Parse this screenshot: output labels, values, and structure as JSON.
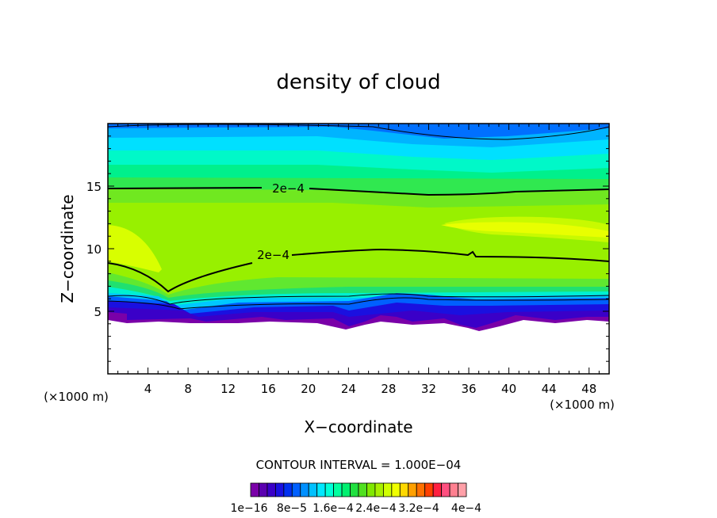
{
  "chart_data": {
    "type": "heatmap",
    "title": "density of cloud",
    "xlabel": "X−coordinate",
    "ylabel": "Z−coordinate",
    "x_unit_left": "(×1000 m)",
    "x_unit_right": "(×1000 m)",
    "xlim": [
      0,
      50
    ],
    "ylim": [
      0,
      20
    ],
    "xticks": [
      4,
      8,
      12,
      16,
      20,
      24,
      28,
      32,
      36,
      40,
      44,
      48
    ],
    "yticks": [
      5,
      10,
      15
    ],
    "contour_labels": [
      {
        "text": "2e−4",
        "x": 18,
        "z": 14.8
      },
      {
        "text": "2e−4",
        "x": 16.5,
        "z": 9.5
      }
    ],
    "contour_interval_text": "CONTOUR INTERVAL = 1.000E−04",
    "colorbar": {
      "labels": [
        "1e−16",
        "8e−5",
        "1.6e−4",
        "2.4e−4",
        "3.2e−4",
        "4e−4"
      ],
      "colors": [
        "#7a00a8",
        "#5a00b0",
        "#3a00c8",
        "#1a10e0",
        "#0030f0",
        "#0060ff",
        "#0090ff",
        "#00c0ff",
        "#00e8ff",
        "#00ffd8",
        "#00ffa0",
        "#00f070",
        "#20e040",
        "#50e020",
        "#80e800",
        "#a8f000",
        "#d0ff00",
        "#f0ff00",
        "#ffd800",
        "#ffa000",
        "#ff7000",
        "#ff4000",
        "#ff2040",
        "#ff5080",
        "#ff8090",
        "#ffa0a8"
      ]
    }
  }
}
